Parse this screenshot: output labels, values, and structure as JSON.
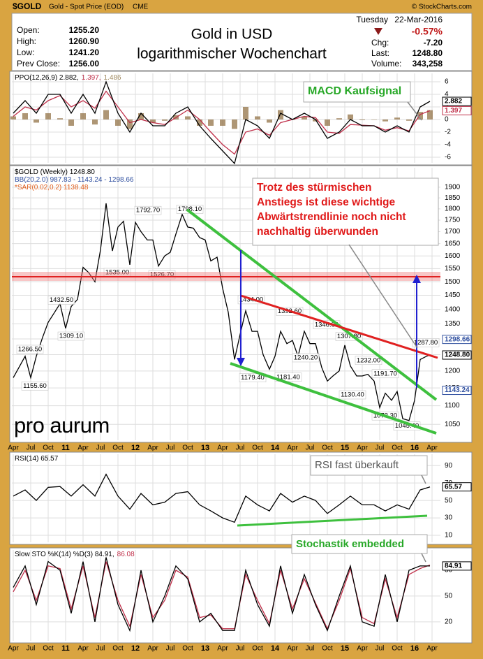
{
  "header": {
    "symbol": "$GOLD",
    "name": "Gold - Spot Price (EOD)",
    "exchange": "CME",
    "copyright": "© StockCharts.com",
    "open_label": "Open:",
    "open": "1255.20",
    "high_label": "High:",
    "high": "1260.90",
    "low_label": "Low:",
    "low": "1241.20",
    "prev_label": "Prev Close:",
    "prev": "1256.00",
    "title": "Gold in USD",
    "subtitle": "logarithmischer Wochenchart",
    "day": "Tuesday",
    "date": "22-Mar-2016",
    "change_pct": "-0.57%",
    "chg_label": "Chg:",
    "chg": "-7.20",
    "last_label": "Last:",
    "last": "1248.80",
    "volume_label": "Volume:",
    "volume": "343,258"
  },
  "logo": "pro aurum",
  "chart_data": [
    {
      "type": "line",
      "legend": [
        "PPO(12,26,9) 2.882,",
        "1.397,",
        "1.486"
      ],
      "legend_colors": [
        "#000000",
        "#c0304a",
        "#a08a60"
      ],
      "callout": [
        "MACD Kaufsignal"
      ],
      "x": [
        2010.25,
        2010.42,
        2010.58,
        2010.75,
        2010.92,
        2011.08,
        2011.25,
        2011.42,
        2011.58,
        2011.75,
        2011.92,
        2012.08,
        2012.25,
        2012.42,
        2012.58,
        2012.75,
        2012.92,
        2013.08,
        2013.25,
        2013.42,
        2013.58,
        2013.75,
        2013.92,
        2014.08,
        2014.25,
        2014.42,
        2014.58,
        2014.75,
        2014.92,
        2015.08,
        2015.25,
        2015.42,
        2015.58,
        2015.75,
        2015.92,
        2016.08,
        2016.22
      ],
      "series": [
        {
          "type": "bar",
          "color": "#8b6a3a",
          "values": [
            0.5,
            1,
            -0.5,
            1,
            0.2,
            -1,
            1,
            -0.8,
            1.5,
            -1,
            -1.5,
            1,
            -0.5,
            -0.2,
            0.7,
            0.5,
            -1,
            -1,
            -1,
            -1.5,
            2,
            0.5,
            -0.5,
            1.5,
            0,
            0.5,
            -0.3,
            -1,
            0.2,
            0.8,
            -0.1,
            0,
            -0.3,
            0.3,
            -0.2,
            1.2,
            1.486
          ]
        },
        {
          "color": "#c0304a",
          "values": [
            0.5,
            2,
            1.5,
            3,
            3.8,
            2,
            3,
            1.8,
            4.5,
            2,
            -0.5,
            0,
            -0.5,
            -0.8,
            0.3,
            1.5,
            0,
            -2,
            -4,
            -5.5,
            -2,
            -1.5,
            -2.5,
            -0.5,
            0,
            0.5,
            0.3,
            -2,
            -2.2,
            -0.8,
            -0.9,
            -1,
            -1.7,
            -1.3,
            -1.8,
            0.8,
            1.397
          ]
        },
        {
          "color": "#000000",
          "values": [
            1,
            3,
            1,
            4,
            4,
            1,
            4,
            1,
            6,
            1,
            -2,
            1,
            -1,
            -1,
            1,
            2,
            -1,
            -3,
            -5,
            -7,
            0,
            -1,
            -3,
            1,
            0,
            1,
            0,
            -3,
            -2,
            0,
            -1,
            -1,
            -2,
            -1,
            -2,
            2,
            2.882
          ]
        }
      ],
      "xlim": [
        2010.23,
        2016.37
      ],
      "ylim": [
        -6.89,
        7.33
      ],
      "yticks": [
        -6,
        -4,
        -2,
        0,
        2,
        4,
        6
      ],
      "tags": [
        {
          "value": 2.882,
          "label": "2.882",
          "color": "#000000"
        },
        {
          "value": 1.397,
          "label": "1.397",
          "color": "#c0304a"
        }
      ]
    },
    {
      "type": "line",
      "log": true,
      "legend": [
        "$GOLD (Weekly) 1248.80",
        "BB(20,2.0) 987.83 - 1143.24 - 1298.66",
        "*SAR(0.02,0.2) 1138.48"
      ],
      "legend_colors": [
        "#000000",
        "#3050a0",
        "#e06020"
      ],
      "callout": [
        "Trotz des stürmischen",
        "Anstiegs ist diese wichtige",
        "Abwärtstrendlinie noch nicht",
        "nachhaltig überwunden"
      ],
      "x": [
        2010.25,
        2010.33,
        2010.42,
        2010.5,
        2010.58,
        2010.67,
        2010.75,
        2010.83,
        2010.92,
        2011.0,
        2011.08,
        2011.17,
        2011.25,
        2011.33,
        2011.42,
        2011.5,
        2011.58,
        2011.67,
        2011.75,
        2011.83,
        2011.92,
        2012.0,
        2012.08,
        2012.17,
        2012.25,
        2012.33,
        2012.42,
        2012.5,
        2012.58,
        2012.67,
        2012.75,
        2012.83,
        2012.92,
        2013.0,
        2013.08,
        2013.17,
        2013.25,
        2013.33,
        2013.42,
        2013.5,
        2013.58,
        2013.67,
        2013.75,
        2013.83,
        2013.92,
        2014.0,
        2014.08,
        2014.17,
        2014.25,
        2014.33,
        2014.42,
        2014.5,
        2014.58,
        2014.67,
        2014.75,
        2014.83,
        2014.92,
        2015.0,
        2015.08,
        2015.17,
        2015.25,
        2015.33,
        2015.42,
        2015.5,
        2015.58,
        2015.67,
        2015.75,
        2015.83,
        2015.92,
        2016.0,
        2016.08,
        2016.17,
        2016.22
      ],
      "series": [
        {
          "color": "#000000",
          "values": [
            1180,
            1210,
            1245,
            1180,
            1245,
            1305,
            1355,
            1385,
            1420,
            1335,
            1410,
            1435,
            1555,
            1535,
            1500,
            1625,
            1825,
            1620,
            1720,
            1745,
            1565,
            1740,
            1700,
            1665,
            1665,
            1560,
            1600,
            1615,
            1690,
            1775,
            1720,
            1715,
            1675,
            1665,
            1580,
            1595,
            1475,
            1390,
            1235,
            1315,
            1395,
            1325,
            1325,
            1250,
            1205,
            1245,
            1325,
            1285,
            1295,
            1245,
            1325,
            1285,
            1285,
            1210,
            1170,
            1185,
            1200,
            1280,
            1215,
            1185,
            1185,
            1190,
            1170,
            1095,
            1135,
            1115,
            1140,
            1065,
            1060,
            1115,
            1235,
            1245,
            1248.8
          ]
        }
      ],
      "annotations": [
        {
          "x": 2010.49,
          "value": 1266.5,
          "label": "1266.50"
        },
        {
          "x": 2010.56,
          "value": 1155.6,
          "label": "1155.60"
        },
        {
          "x": 2011.08,
          "value": 1309.1,
          "label": "1309.10"
        },
        {
          "x": 2010.94,
          "value": 1432.5,
          "label": "1432.50"
        },
        {
          "x": 2011.74,
          "value": 1535,
          "label": "1535.00"
        },
        {
          "x": 2012.38,
          "value": 1526.7,
          "label": "1526.70"
        },
        {
          "x": 2012.18,
          "value": 1792.7,
          "label": "1792.70"
        },
        {
          "x": 2012.78,
          "value": 1798.1,
          "label": "1798.10"
        },
        {
          "x": 2013.66,
          "value": 1434,
          "label": "1434.00"
        },
        {
          "x": 2013.68,
          "value": 1179.4,
          "label": "1179.40"
        },
        {
          "x": 2014.21,
          "value": 1392.6,
          "label": "1392.60"
        },
        {
          "x": 2014.19,
          "value": 1181.4,
          "label": "1181.40"
        },
        {
          "x": 2014.44,
          "value": 1240.2,
          "label": "1240.20"
        },
        {
          "x": 2014.74,
          "value": 1346.8,
          "label": "1346.80"
        },
        {
          "x": 2015.06,
          "value": 1307.8,
          "label": "1307.80"
        },
        {
          "x": 2015.11,
          "value": 1130.4,
          "label": "1130.40"
        },
        {
          "x": 2015.34,
          "value": 1232,
          "label": "1232.00"
        },
        {
          "x": 2015.58,
          "value": 1191.7,
          "label": "1191.70"
        },
        {
          "x": 2015.58,
          "value": 1072.3,
          "label": "1072.30"
        },
        {
          "x": 2015.89,
          "value": 1045.4,
          "label": "1045.40"
        },
        {
          "x": 2016.16,
          "value": 1287.8,
          "label": "1287.80"
        }
      ],
      "xlim": [
        2010.23,
        2016.37
      ],
      "ylim": [
        1009,
        1995
      ],
      "yticks": [
        1050,
        1100,
        1150,
        1200,
        1250,
        1300,
        1350,
        1400,
        1450,
        1500,
        1550,
        1600,
        1650,
        1700,
        1750,
        1800,
        1850,
        1900
      ],
      "xticks": [
        {
          "value": 2010.25,
          "label": "Apr"
        },
        {
          "value": 2010.5,
          "label": "Jul"
        },
        {
          "value": 2010.75,
          "label": "Oct"
        },
        {
          "value": 2011,
          "label": "11"
        },
        {
          "value": 2011.25,
          "label": "Apr"
        },
        {
          "value": 2011.5,
          "label": "Jul"
        },
        {
          "value": 2011.75,
          "label": "Oct"
        },
        {
          "value": 2012,
          "label": "12"
        },
        {
          "value": 2012.25,
          "label": "Apr"
        },
        {
          "value": 2012.5,
          "label": "Jul"
        },
        {
          "value": 2012.75,
          "label": "Oct"
        },
        {
          "value": 2013,
          "label": "13"
        },
        {
          "value": 2013.25,
          "label": "Apr"
        },
        {
          "value": 2013.5,
          "label": "Jul"
        },
        {
          "value": 2013.75,
          "label": "Oct"
        },
        {
          "value": 2014,
          "label": "14"
        },
        {
          "value": 2014.25,
          "label": "Apr"
        },
        {
          "value": 2014.5,
          "label": "Jul"
        },
        {
          "value": 2014.75,
          "label": "Oct"
        },
        {
          "value": 2015,
          "label": "15"
        },
        {
          "value": 2015.25,
          "label": "Apr"
        },
        {
          "value": 2015.5,
          "label": "Jul"
        },
        {
          "value": 2015.75,
          "label": "Oct"
        },
        {
          "value": 2016,
          "label": "16"
        },
        {
          "value": 2016.25,
          "label": "Apr"
        }
      ],
      "tags": [
        {
          "value": 1298.66,
          "label": "1298.66",
          "color": "#3050a0"
        },
        {
          "value": 1248.8,
          "label": "1248.80",
          "color": "#000000"
        },
        {
          "value": 1143.24,
          "label": "1143.24",
          "color": "#3050a0"
        }
      ]
    },
    {
      "type": "line",
      "legend": [
        "RSI(14) 65.57"
      ],
      "legend_colors": [
        "#000000"
      ],
      "callout": [
        "RSI fast überkauft"
      ],
      "x": [
        2010.25,
        2010.42,
        2010.58,
        2010.75,
        2010.92,
        2011.08,
        2011.25,
        2011.42,
        2011.58,
        2011.75,
        2011.92,
        2012.08,
        2012.25,
        2012.42,
        2012.58,
        2012.75,
        2012.92,
        2013.08,
        2013.25,
        2013.42,
        2013.58,
        2013.75,
        2013.92,
        2014.08,
        2014.25,
        2014.42,
        2014.58,
        2014.75,
        2014.92,
        2015.08,
        2015.25,
        2015.42,
        2015.58,
        2015.75,
        2015.92,
        2016.08,
        2016.22
      ],
      "series": [
        {
          "color": "#000000",
          "values": [
            55,
            62,
            50,
            65,
            66,
            55,
            68,
            55,
            80,
            55,
            40,
            58,
            45,
            48,
            58,
            60,
            45,
            38,
            30,
            25,
            55,
            45,
            38,
            58,
            48,
            55,
            50,
            35,
            45,
            55,
            45,
            45,
            38,
            45,
            40,
            62,
            65.57
          ]
        }
      ],
      "xlim": [
        2010.23,
        2016.37
      ],
      "ylim": [
        2,
        103
      ],
      "yticks": [
        10,
        30,
        50,
        70,
        90
      ],
      "tags": [
        {
          "value": 65.57,
          "label": "65.57",
          "color": "#000000"
        }
      ]
    },
    {
      "type": "line",
      "legend": [
        "Slow STO %K(14) %D(3) 84.91,",
        "86.08"
      ],
      "legend_colors": [
        "#000000",
        "#c0304a"
      ],
      "callout": [
        "Stochastik embedded"
      ],
      "x": [
        2010.25,
        2010.42,
        2010.58,
        2010.75,
        2010.92,
        2011.08,
        2011.25,
        2011.42,
        2011.58,
        2011.75,
        2011.92,
        2012.08,
        2012.25,
        2012.42,
        2012.58,
        2012.75,
        2012.92,
        2013.08,
        2013.25,
        2013.42,
        2013.58,
        2013.75,
        2013.92,
        2014.08,
        2014.25,
        2014.42,
        2014.58,
        2014.75,
        2014.92,
        2015.08,
        2015.25,
        2015.42,
        2015.58,
        2015.75,
        2015.92,
        2016.08,
        2016.22
      ],
      "series": [
        {
          "color": "#c0304a",
          "values": [
            55,
            80,
            45,
            85,
            82,
            35,
            85,
            25,
            90,
            45,
            15,
            75,
            25,
            45,
            80,
            72,
            25,
            28,
            12,
            12,
            75,
            45,
            18,
            80,
            35,
            70,
            42,
            12,
            45,
            82,
            25,
            18,
            70,
            25,
            75,
            82,
            86.08
          ]
        },
        {
          "color": "#000000",
          "values": [
            60,
            85,
            40,
            90,
            80,
            30,
            90,
            20,
            95,
            40,
            10,
            80,
            20,
            50,
            85,
            70,
            20,
            30,
            10,
            10,
            80,
            40,
            15,
            85,
            30,
            75,
            40,
            10,
            50,
            85,
            20,
            15,
            75,
            20,
            80,
            85,
            84.91
          ]
        }
      ],
      "xlim": [
        2010.23,
        2016.37
      ],
      "ylim": [
        -2,
        103.5
      ],
      "yticks": [
        20,
        50,
        80
      ],
      "xticks": [
        {
          "value": 2010.25,
          "label": "Apr"
        },
        {
          "value": 2010.5,
          "label": "Jul"
        },
        {
          "value": 2010.75,
          "label": "Oct"
        },
        {
          "value": 2011,
          "label": "11"
        },
        {
          "value": 2011.25,
          "label": "Apr"
        },
        {
          "value": 2011.5,
          "label": "Jul"
        },
        {
          "value": 2011.75,
          "label": "Oct"
        },
        {
          "value": 2012,
          "label": "12"
        },
        {
          "value": 2012.25,
          "label": "Apr"
        },
        {
          "value": 2012.5,
          "label": "Jul"
        },
        {
          "value": 2012.75,
          "label": "Oct"
        },
        {
          "value": 2013,
          "label": "13"
        },
        {
          "value": 2013.25,
          "label": "Apr"
        },
        {
          "value": 2013.5,
          "label": "Jul"
        },
        {
          "value": 2013.75,
          "label": "Oct"
        },
        {
          "value": 2014,
          "label": "14"
        },
        {
          "value": 2014.25,
          "label": "Apr"
        },
        {
          "value": 2014.5,
          "label": "Jul"
        },
        {
          "value": 2014.75,
          "label": "Oct"
        },
        {
          "value": 2015,
          "label": "15"
        },
        {
          "value": 2015.25,
          "label": "Apr"
        },
        {
          "value": 2015.5,
          "label": "Jul"
        },
        {
          "value": 2015.75,
          "label": "Oct"
        },
        {
          "value": 2016,
          "label": "16"
        },
        {
          "value": 2016.25,
          "label": "Apr"
        }
      ],
      "tags": [
        {
          "value": 84.91,
          "label": "84.91",
          "color": "#000000"
        }
      ]
    }
  ]
}
